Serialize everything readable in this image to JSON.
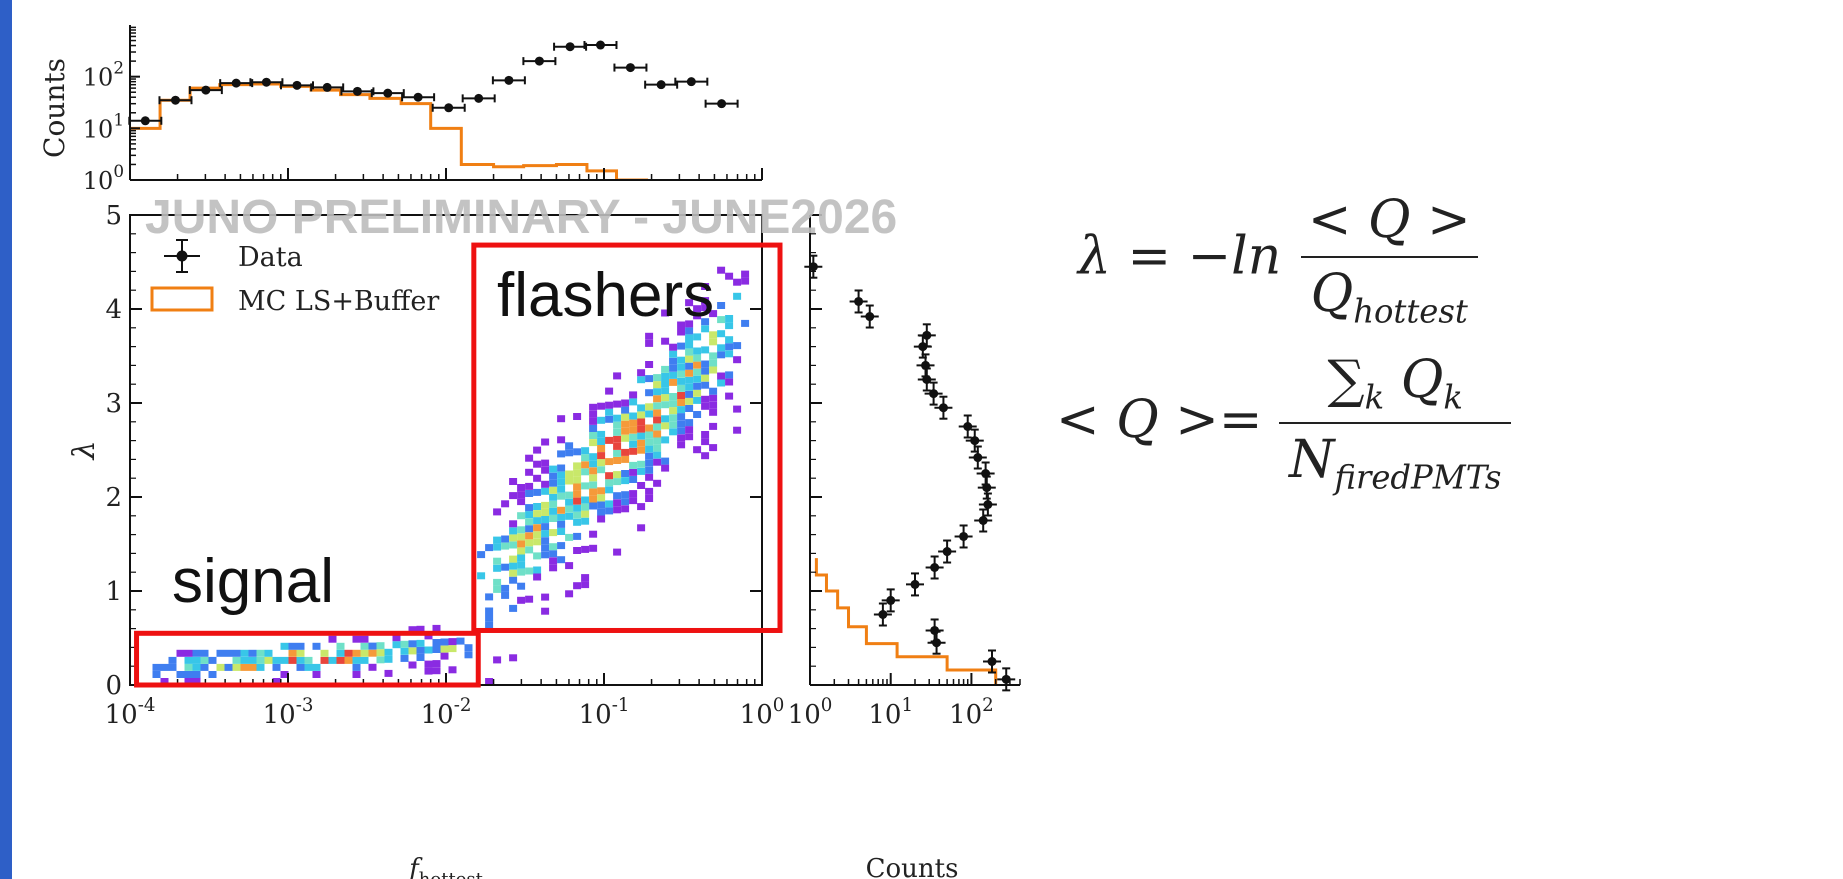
{
  "watermark": "JUNO PRELIMINARY - JUNE2026",
  "legend": {
    "data_label": "Data",
    "mc_label": "MC LS+Buffer"
  },
  "annotations": {
    "flashers": "flashers",
    "signal": "signal"
  },
  "colors": {
    "data": "#111111",
    "mc": "#f07f13",
    "boxes": "#ee1111",
    "accent": "#2e5fc7"
  },
  "equations": {
    "lambda_lhs": "λ = −ln",
    "lambda_num": "< Q >",
    "lambda_den_main": "Q",
    "lambda_den_sub": "hottest",
    "q_lhs": "< Q >=",
    "q_num_main": "∑",
    "q_num_sub": "k",
    "q_num_tail": "Q",
    "q_num_tail_sub": "k",
    "q_den_main": "N",
    "q_den_sub": "firedPMTs"
  },
  "chart_data": [
    {
      "type": "histogram",
      "id": "top",
      "ylabel": "Counts",
      "xscale": "log",
      "xlim": [
        0.0001,
        1
      ],
      "yscale": "log",
      "ylim": [
        1,
        1000
      ],
      "ytick_labels": [
        "10^0",
        "10^1",
        "10^2"
      ],
      "series": [
        {
          "name": "Data",
          "style": "errorbar",
          "x": [
            0.000125,
            0.000194,
            0.000302,
            0.00047,
            0.00073,
            0.00114,
            0.00177,
            0.00275,
            0.00428,
            0.00666,
            0.0104,
            0.0161,
            0.025,
            0.039,
            0.061,
            0.095,
            0.147,
            0.23,
            0.357,
            0.555,
            0.86
          ],
          "y": [
            14,
            35,
            55,
            75,
            78,
            68,
            62,
            52,
            48,
            40,
            25,
            38,
            85,
            200,
            380,
            410,
            150,
            70,
            80,
            30,
            0
          ]
        },
        {
          "name": "MC LS+Buffer",
          "style": "step",
          "edges": [
            0.0001,
            0.000155,
            0.00024,
            0.00037,
            0.00058,
            0.0009,
            0.0014,
            0.00215,
            0.0033,
            0.0052,
            0.008,
            0.0125,
            0.02,
            0.031,
            0.05,
            0.078,
            0.12,
            0.19
          ],
          "values": [
            10,
            35,
            60,
            70,
            72,
            65,
            55,
            45,
            38,
            30,
            10,
            2,
            1.8,
            1.9,
            2,
            1.5,
            1
          ]
        }
      ]
    },
    {
      "type": "heatmap",
      "id": "main",
      "xlabel": "f_hottest",
      "ylabel": "λ",
      "xscale": "log",
      "xlim": [
        0.0001,
        1
      ],
      "ylim": [
        0,
        5
      ],
      "xtick_labels": [
        "10^-4",
        "10^-3",
        "10^-2",
        "10^-1",
        "10^0"
      ],
      "ytick_labels": [
        "0",
        "1",
        "2",
        "3",
        "4",
        "5"
      ],
      "density_bands": [
        {
          "x_range": [
            0.00011,
            0.014
          ],
          "lambda_center": [
            0.15,
            0.35
          ],
          "lambda_spread": 0.12
        },
        {
          "x_range": [
            0.014,
            0.8
          ],
          "lambda_center": [
            0.9,
            3.9
          ],
          "lambda_spread": 0.45
        }
      ],
      "regions": [
        {
          "label": "flashers",
          "x": [
            0.015,
            1.3
          ],
          "y": [
            0.58,
            4.68
          ]
        },
        {
          "label": "signal",
          "x": [
            0.00011,
            0.016
          ],
          "y": [
            0,
            0.55
          ]
        }
      ]
    },
    {
      "type": "histogram",
      "id": "right",
      "orientation": "horizontal",
      "xlabel": "Counts",
      "xscale": "log",
      "xlim": [
        1,
        400
      ],
      "xtick_labels": [
        "10^0",
        "10^1",
        "10^2"
      ],
      "ylim": [
        0,
        5
      ],
      "series": [
        {
          "name": "Data",
          "style": "errorbar",
          "y": [
            4.45,
            4.08,
            3.92,
            3.72,
            3.6,
            3.4,
            3.25,
            3.1,
            2.95,
            2.75,
            2.6,
            2.42,
            2.25,
            2.1,
            1.92,
            1.75,
            1.58,
            1.42,
            1.25,
            1.07,
            0.9,
            0.75,
            0.58,
            0.45,
            0.25,
            0.06
          ],
          "x": [
            1.1,
            4,
            5.5,
            28,
            25,
            27,
            28,
            34,
            45,
            90,
            110,
            120,
            150,
            155,
            160,
            140,
            80,
            50,
            35,
            20,
            10,
            8,
            35,
            37,
            180,
            270
          ]
        },
        {
          "name": "MC LS+Buffer",
          "style": "step",
          "edges": [
            1.35,
            1.17,
            1.0,
            0.82,
            0.62,
            0.44,
            0.3,
            0.16,
            0.0
          ],
          "values": [
            1.2,
            1.6,
            2.2,
            3.0,
            5,
            12,
            50,
            200
          ]
        }
      ]
    }
  ]
}
